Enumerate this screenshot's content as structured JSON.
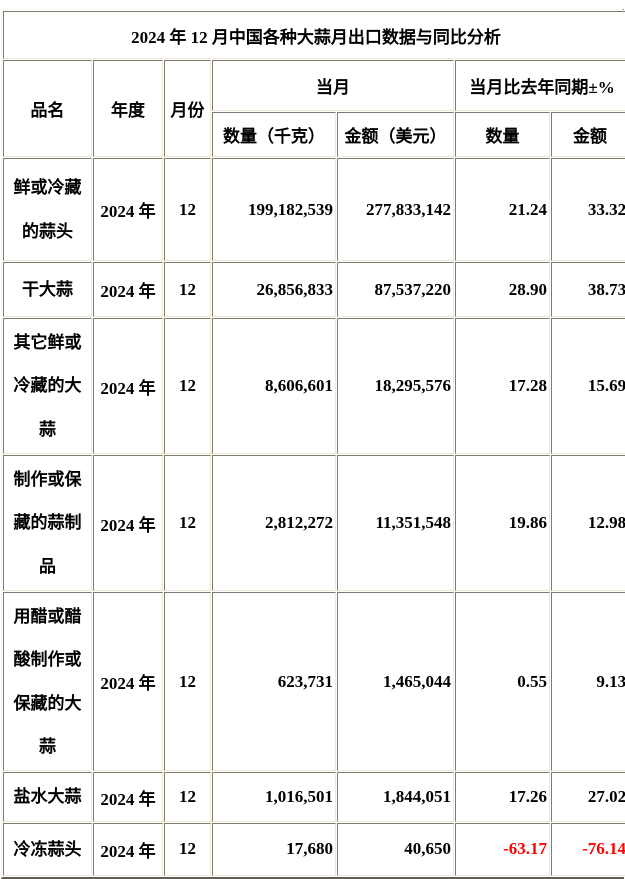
{
  "title": "2024 年 12 月中国各种大蒜月出口数据与同比分析",
  "table": {
    "columns": {
      "product": "品名",
      "year": "年度",
      "month": "月份",
      "current_month": "当月",
      "yoy": "当月比去年同期±%",
      "qty_kg": "数量（千克）",
      "amount_usd": "金额（美元）",
      "qty": "数量",
      "amount": "金额"
    },
    "rows": [
      {
        "name": "鲜或冷藏的蒜头",
        "year": "2024 年",
        "month": "12",
        "qty": "199,182,539",
        "amount": "277,833,142",
        "qty_pct": "21.24",
        "amount_pct": "33.32"
      },
      {
        "name": "干大蒜",
        "year": "2024 年",
        "month": "12",
        "qty": "26,856,833",
        "amount": "87,537,220",
        "qty_pct": "28.90",
        "amount_pct": "38.73"
      },
      {
        "name": "其它鲜或冷藏的大蒜",
        "year": "2024 年",
        "month": "12",
        "qty": "8,606,601",
        "amount": "18,295,576",
        "qty_pct": "17.28",
        "amount_pct": "15.69"
      },
      {
        "name": "制作或保藏的蒜制品",
        "year": "2024 年",
        "month": "12",
        "qty": "2,812,272",
        "amount": "11,351,548",
        "qty_pct": "19.86",
        "amount_pct": "12.98"
      },
      {
        "name": "用醋或醋酸制作或保藏的大蒜",
        "year": "2024 年",
        "month": "12",
        "qty": "623,731",
        "amount": "1,465,044",
        "qty_pct": "0.55",
        "amount_pct": "9.13"
      },
      {
        "name": "盐水大蒜",
        "year": "2024 年",
        "month": "12",
        "qty": "1,016,501",
        "amount": "1,844,051",
        "qty_pct": "17.26",
        "amount_pct": "27.02"
      },
      {
        "name": "冷冻蒜头",
        "year": "2024 年",
        "month": "12",
        "qty": "17,680",
        "amount": "40,650",
        "qty_pct": "-63.17",
        "amount_pct": "-76.14"
      }
    ]
  },
  "colors": {
    "text": "#000000",
    "negative": "#ff0000",
    "cell_border_dark": "#7e7b71",
    "cell_border_light": "#efe9d6",
    "frame_border_dark": "#5e5c54",
    "frame_border_light": "#fbf7ec",
    "background": "#ffffff"
  }
}
